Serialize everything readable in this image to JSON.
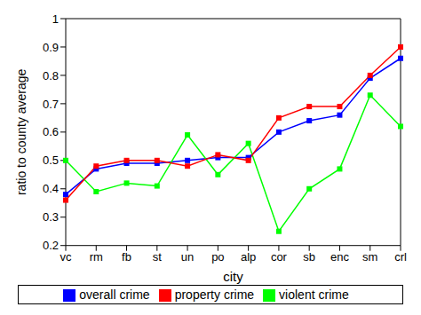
{
  "chart_data": {
    "type": "line",
    "x_label": "city",
    "y_label": "ratio to county average",
    "categories": [
      "vc",
      "rm",
      "fb",
      "st",
      "un",
      "po",
      "alp",
      "cor",
      "sb",
      "enc",
      "sm",
      "crl"
    ],
    "series": [
      {
        "name": "overall crime",
        "color": "#0000ff",
        "marker": "square",
        "values": [
          0.38,
          0.47,
          0.49,
          0.49,
          0.5,
          0.51,
          0.51,
          0.6,
          0.64,
          0.66,
          0.79,
          0.86
        ]
      },
      {
        "name": "violent crime",
        "color": "#00ff00",
        "marker": "square",
        "values": [
          0.5,
          0.39,
          0.42,
          0.41,
          0.59,
          0.45,
          0.56,
          0.25,
          0.4,
          0.47,
          0.73,
          0.62
        ]
      },
      {
        "name": "property crime",
        "color": "#ff0000",
        "marker": "square",
        "values": [
          0.36,
          0.48,
          0.5,
          0.5,
          0.48,
          0.52,
          0.5,
          0.65,
          0.69,
          0.69,
          0.8,
          0.9
        ]
      }
    ],
    "ylim": [
      0.2,
      1
    ],
    "yticks": [
      0.2,
      0.3,
      0.4,
      0.5,
      0.6,
      0.7,
      0.8,
      0.9,
      1
    ],
    "grid": false,
    "legend": "bottom"
  }
}
